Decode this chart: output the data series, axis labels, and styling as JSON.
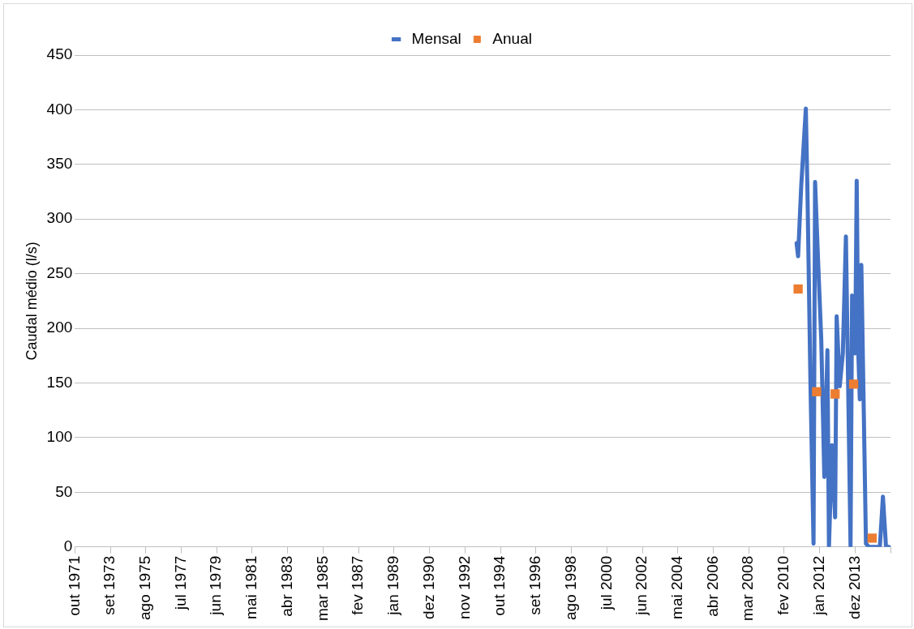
{
  "chart_data": {
    "type": "line",
    "ylabel": "Caudal médio (l/s)",
    "xlim": [
      "1971-10",
      "2015-11"
    ],
    "xticks": [
      {
        "value": "1971-10",
        "label": "out 1971"
      },
      {
        "value": "1973-09",
        "label": "set 1973"
      },
      {
        "value": "1975-08",
        "label": "ago 1975"
      },
      {
        "value": "1977-07",
        "label": "jul 1977"
      },
      {
        "value": "1979-06",
        "label": "jun 1979"
      },
      {
        "value": "1981-05",
        "label": "mai 1981"
      },
      {
        "value": "1983-04",
        "label": "abr 1983"
      },
      {
        "value": "1985-03",
        "label": "mar 1985"
      },
      {
        "value": "1987-02",
        "label": "fev 1987"
      },
      {
        "value": "1989-01",
        "label": "jan 1989"
      },
      {
        "value": "1990-12",
        "label": "dez 1990"
      },
      {
        "value": "1992-11",
        "label": "nov 1992"
      },
      {
        "value": "1994-10",
        "label": "out 1994"
      },
      {
        "value": "1996-09",
        "label": "set 1996"
      },
      {
        "value": "1998-08",
        "label": "ago 1998"
      },
      {
        "value": "2000-07",
        "label": "jul 2000"
      },
      {
        "value": "2002-06",
        "label": "jun 2002"
      },
      {
        "value": "2004-05",
        "label": "mai 2004"
      },
      {
        "value": "2006-04",
        "label": "abr 2006"
      },
      {
        "value": "2008-03",
        "label": "mar 2008"
      },
      {
        "value": "2010-02",
        "label": "fev 2010"
      },
      {
        "value": "2012-01",
        "label": "jan 2012"
      },
      {
        "value": "2013-12",
        "label": "dez 2013"
      },
      {
        "value": "2015-11",
        "label": null
      }
    ],
    "ylim": [
      0,
      450
    ],
    "yticks": [
      0,
      50,
      100,
      150,
      200,
      250,
      300,
      350,
      400,
      450
    ],
    "grid": "y",
    "legend": "top",
    "series": [
      {
        "name": "Mensal",
        "marker": "none",
        "color": "#4472c4",
        "x": [
          "2010-10",
          "2010-11",
          "2011-01",
          "2011-04",
          "2011-05",
          "2011-07",
          "2011-09",
          "2011-10",
          "2011-12",
          "2012-02",
          "2012-04",
          "2012-06",
          "2012-07",
          "2012-09",
          "2012-11",
          "2012-12",
          "2013-02",
          "2013-04",
          "2013-06",
          "2013-09",
          "2013-10",
          "2013-12",
          "2014-01",
          "2014-02",
          "2014-03",
          "2014-04",
          "2014-07",
          "2014-09",
          "2015-04",
          "2015-06",
          "2015-08",
          "2015-10"
        ],
        "values": [
          278,
          266,
          330,
          401,
          330,
          150,
          3,
          334,
          260,
          190,
          64,
          180,
          0,
          93,
          27,
          211,
          147,
          177,
          284,
          0,
          230,
          177,
          335,
          179,
          135,
          258,
          3,
          0,
          0,
          46,
          0,
          0
        ]
      },
      {
        "name": "Anual",
        "type": "scatter",
        "marker": "square",
        "color": "#ed7d31",
        "x": [
          "2010-11",
          "2011-11",
          "2012-11",
          "2013-11",
          "2014-11"
        ],
        "values": [
          236,
          142,
          140,
          149,
          8
        ]
      }
    ]
  }
}
